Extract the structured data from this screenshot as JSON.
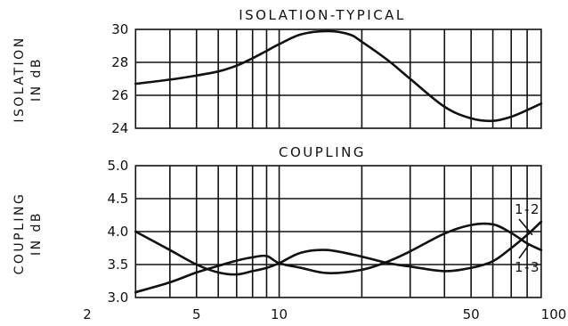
{
  "chart_data": [
    {
      "type": "line",
      "title": "ISOLATION-TYPICAL",
      "ylabel_lines": [
        "ISOLATION",
        "IN dB"
      ],
      "xscale": "log",
      "xlim": [
        3,
        90
      ],
      "ylim": [
        24,
        30
      ],
      "yticks": [
        24,
        26,
        28,
        30
      ],
      "ytick_labels": [
        "24",
        "26",
        "28",
        "30"
      ],
      "grid": true,
      "series": [
        {
          "x": [
            3,
            4,
            5,
            6,
            7,
            8,
            9,
            10,
            12,
            15,
            18,
            20,
            25,
            30,
            40,
            50,
            60,
            70,
            80,
            90
          ],
          "values": [
            26.7,
            26.95,
            27.2,
            27.45,
            27.8,
            28.25,
            28.7,
            29.1,
            29.7,
            29.9,
            29.7,
            29.25,
            28.1,
            27.0,
            25.3,
            24.6,
            24.45,
            24.7,
            25.1,
            25.5
          ]
        }
      ]
    },
    {
      "type": "line",
      "title": "COUPLING",
      "ylabel_lines": [
        "COUPLING",
        "IN dB"
      ],
      "xscale": "log",
      "xlim": [
        3,
        90
      ],
      "ylim": [
        3.0,
        5.0
      ],
      "yticks": [
        3.0,
        3.5,
        4.0,
        4.5,
        5.0
      ],
      "ytick_labels": [
        "3.0",
        "3.5",
        "4.0",
        "4.5",
        "5.0"
      ],
      "xtick_labels": [
        "2",
        "5",
        "10",
        "50",
        "100"
      ],
      "grid": true,
      "series": [
        {
          "name": "1-2",
          "x": [
            3,
            4,
            5,
            6,
            7,
            8,
            9,
            10,
            12,
            15,
            20,
            25,
            30,
            40,
            50,
            60,
            70,
            80,
            90
          ],
          "values": [
            3.08,
            3.23,
            3.38,
            3.48,
            3.56,
            3.61,
            3.63,
            3.52,
            3.45,
            3.37,
            3.42,
            3.55,
            3.7,
            3.97,
            4.1,
            4.11,
            3.98,
            3.82,
            3.72
          ]
        },
        {
          "name": "1-3",
          "x": [
            3,
            4,
            5,
            6,
            7,
            8,
            9,
            10,
            12,
            15,
            20,
            25,
            30,
            40,
            50,
            60,
            70,
            80,
            90
          ],
          "values": [
            4.0,
            3.72,
            3.5,
            3.38,
            3.35,
            3.4,
            3.45,
            3.52,
            3.68,
            3.72,
            3.62,
            3.52,
            3.47,
            3.4,
            3.45,
            3.55,
            3.75,
            3.95,
            4.15
          ]
        }
      ]
    }
  ]
}
